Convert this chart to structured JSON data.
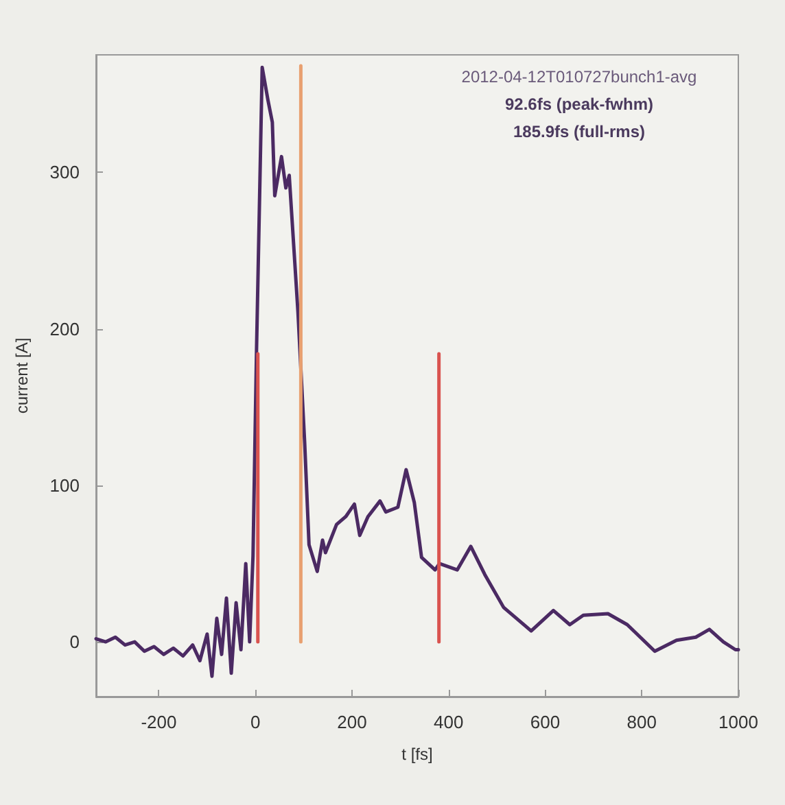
{
  "chart_data": {
    "type": "line",
    "xlabel": "t [fs]",
    "ylabel": "current [A]",
    "xlim": [
      -330,
      1000
    ],
    "ylim": [
      -35,
      375
    ],
    "xticks": [
      -200,
      0,
      200,
      400,
      600,
      800,
      1000
    ],
    "yticks": [
      0,
      100,
      200,
      300
    ],
    "grid": false,
    "marker": "none",
    "line_style": "solid",
    "annotations": [
      "2012-04-12T010727bunch1-avg",
      "92.6fs (peak-fwhm)",
      "185.9fs (full-rms)"
    ],
    "series": [
      {
        "color": "#4b2a63",
        "x": [
          -330,
          -310,
          -290,
          -270,
          -250,
          -230,
          -210,
          -190,
          -170,
          -150,
          -130,
          -115,
          -100,
          -90,
          -80,
          -70,
          -60,
          -50,
          -40,
          -30,
          -20,
          -12,
          -5,
          2,
          14,
          26,
          35,
          40,
          54,
          63,
          70,
          88,
          102,
          111,
          128,
          139,
          145,
          168,
          187,
          205,
          216,
          233,
          258,
          270,
          295,
          312,
          329,
          344,
          372,
          381,
          418,
          446,
          475,
          514,
          571,
          617,
          651,
          679,
          730,
          770,
          827,
          872,
          912,
          940,
          969,
          994,
          1000
        ],
        "values": [
          2,
          0,
          3,
          -2,
          0,
          -6,
          -3,
          -8,
          -4,
          -9,
          -2,
          -12,
          5,
          -22,
          15,
          -8,
          28,
          -20,
          25,
          -5,
          50,
          0,
          55,
          182,
          367,
          346,
          332,
          285,
          310,
          290,
          298,
          211,
          127,
          62,
          45,
          65,
          57,
          75,
          80,
          88,
          68,
          80,
          90,
          83,
          86,
          110,
          89,
          54,
          46,
          50,
          46,
          61,
          43,
          22,
          7,
          20,
          11,
          17,
          18,
          11,
          -6,
          1,
          3,
          8,
          0,
          -5,
          -5
        ]
      },
      {
        "color": "#d9534f",
        "x": [
          5,
          5
        ],
        "values": [
          0,
          184
        ]
      },
      {
        "color": "#e8a070",
        "x": [
          94,
          94
        ],
        "values": [
          0,
          368
        ]
      },
      {
        "color": "#d9534f",
        "x": [
          380,
          380
        ],
        "values": [
          0,
          184
        ]
      }
    ]
  }
}
